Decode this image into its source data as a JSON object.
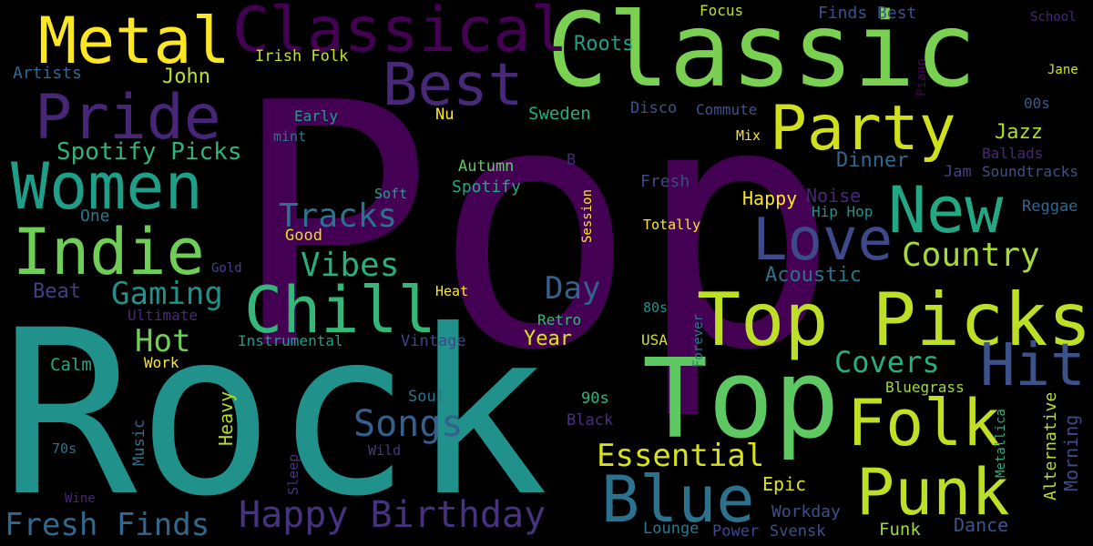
{
  "words": [
    {
      "text": "Pop",
      "color": "#440154"
    },
    {
      "text": "Rock",
      "color": "#21918c"
    },
    {
      "text": "Classic",
      "color": "#7ad151"
    },
    {
      "text": "Top Picks",
      "color": "#bddf26"
    },
    {
      "text": "Top",
      "color": "#5ec962"
    },
    {
      "text": "Classical",
      "color": "#440154"
    },
    {
      "text": "Metal",
      "color": "#fde725"
    },
    {
      "text": "Pride",
      "color": "#482677"
    },
    {
      "text": "Best",
      "color": "#482878"
    },
    {
      "text": "Party",
      "color": "#d0e11c"
    },
    {
      "text": "Women",
      "color": "#1f9e89"
    },
    {
      "text": "Indie",
      "color": "#6ece58"
    },
    {
      "text": "New",
      "color": "#22a884"
    },
    {
      "text": "Love",
      "color": "#3e4989"
    },
    {
      "text": "Chill",
      "color": "#35b779"
    },
    {
      "text": "Hit",
      "color": "#3b528b"
    },
    {
      "text": "Folk",
      "color": "#c2df23"
    },
    {
      "text": "Punk",
      "color": "#bddf26"
    },
    {
      "text": "Blue",
      "color": "#2c728e"
    },
    {
      "text": "Songs",
      "color": "#355f8d"
    },
    {
      "text": "Happy Birthday",
      "color": "#46327e"
    },
    {
      "text": "Fresh Finds",
      "color": "#31688e"
    },
    {
      "text": "Essential",
      "color": "#d8e219"
    },
    {
      "text": "Tracks",
      "color": "#2c728e"
    },
    {
      "text": "Vibes",
      "color": "#29af7f"
    },
    {
      "text": "Gaming",
      "color": "#21918c"
    },
    {
      "text": "Hot",
      "color": "#6ece58"
    },
    {
      "text": "Country",
      "color": "#a5db36"
    },
    {
      "text": "Covers",
      "color": "#29af7f"
    },
    {
      "text": "Spotify Picks",
      "color": "#2fb47c"
    },
    {
      "text": "Day",
      "color": "#33638d"
    },
    {
      "text": "John",
      "color": "#bddf26"
    },
    {
      "text": "Roots",
      "color": "#1f9e89"
    },
    {
      "text": "Acoustic",
      "color": "#2c728e"
    },
    {
      "text": "Jazz",
      "color": "#addc30"
    },
    {
      "text": "Dinner",
      "color": "#31688e"
    },
    {
      "text": "Year",
      "color": "#dde318"
    },
    {
      "text": "Artists",
      "color": "#31688e"
    },
    {
      "text": "Irish Folk",
      "color": "#c8e020"
    },
    {
      "text": "Finds Best",
      "color": "#3b528b"
    },
    {
      "text": "Focus",
      "color": "#c0df25"
    },
    {
      "text": "School",
      "color": "#482475"
    },
    {
      "text": "Jane",
      "color": "#d2e21b"
    },
    {
      "text": "00s",
      "color": "#38598c"
    },
    {
      "text": "Piano",
      "color": "#440154"
    },
    {
      "text": "Early",
      "color": "#1f9e89"
    },
    {
      "text": "Nu",
      "color": "#fde725"
    },
    {
      "text": "Sweden",
      "color": "#26ad81"
    },
    {
      "text": "Disco",
      "color": "#39568c"
    },
    {
      "text": "Commute",
      "color": "#3b528b"
    },
    {
      "text": "Mix",
      "color": "#fde725"
    },
    {
      "text": "Ballads",
      "color": "#482878"
    },
    {
      "text": "Soundtracks",
      "color": "#3b528b"
    },
    {
      "text": "Jam",
      "color": "#433e85"
    },
    {
      "text": "mint",
      "color": "#2a788e"
    },
    {
      "text": "B",
      "color": "#482576"
    },
    {
      "text": "Autumn",
      "color": "#5ec962"
    },
    {
      "text": "Spotify",
      "color": "#22a884"
    },
    {
      "text": "Fresh",
      "color": "#3e4989"
    },
    {
      "text": "Happy",
      "color": "#fde725"
    },
    {
      "text": "Noise",
      "color": "#482677"
    },
    {
      "text": "Soft",
      "color": "#20a486"
    },
    {
      "text": "One",
      "color": "#2a788e"
    },
    {
      "text": "Session",
      "color": "#fde725"
    },
    {
      "text": "Totally",
      "color": "#fde725"
    },
    {
      "text": "Hip Hop",
      "color": "#21918c"
    },
    {
      "text": "Reggae",
      "color": "#31688e"
    },
    {
      "text": "Good",
      "color": "#dde318"
    },
    {
      "text": "Gold",
      "color": "#414487"
    },
    {
      "text": "Beat",
      "color": "#433e85"
    },
    {
      "text": "Heat",
      "color": "#fde725"
    },
    {
      "text": "80s",
      "color": "#21918c"
    },
    {
      "text": "Ultimate",
      "color": "#482878"
    },
    {
      "text": "Retro",
      "color": "#35b779"
    },
    {
      "text": "Forever",
      "color": "#2a788e"
    },
    {
      "text": "Instrumental",
      "color": "#1f9e89"
    },
    {
      "text": "Vintage",
      "color": "#414487"
    },
    {
      "text": "USA",
      "color": "#d2e21b"
    },
    {
      "text": "Calm",
      "color": "#22a884"
    },
    {
      "text": "Work",
      "color": "#fde725"
    },
    {
      "text": "Heavy",
      "color": "#b5de2b"
    },
    {
      "text": "Soul",
      "color": "#2c728e"
    },
    {
      "text": "90s",
      "color": "#2fb47c"
    },
    {
      "text": "Bluegrass",
      "color": "#a2da37"
    },
    {
      "text": "Black",
      "color": "#46307e"
    },
    {
      "text": "Metallica",
      "color": "#29af7f"
    },
    {
      "text": "Alternative",
      "color": "#b8de29"
    },
    {
      "text": "Morning",
      "color": "#3e4989"
    },
    {
      "text": "Music",
      "color": "#2c728e"
    },
    {
      "text": "70s",
      "color": "#2c728e"
    },
    {
      "text": "Sleep",
      "color": "#46327e"
    },
    {
      "text": "Wild",
      "color": "#443983"
    },
    {
      "text": "Wine",
      "color": "#482475"
    },
    {
      "text": "Epic",
      "color": "#dde318"
    },
    {
      "text": "Workday",
      "color": "#3b528b"
    },
    {
      "text": "Lounge",
      "color": "#2a788e"
    },
    {
      "text": "Power",
      "color": "#3e4989"
    },
    {
      "text": "Svensk",
      "color": "#3b528b"
    },
    {
      "text": "Funk",
      "color": "#a0da39"
    },
    {
      "text": "Dance",
      "color": "#39568c"
    }
  ]
}
